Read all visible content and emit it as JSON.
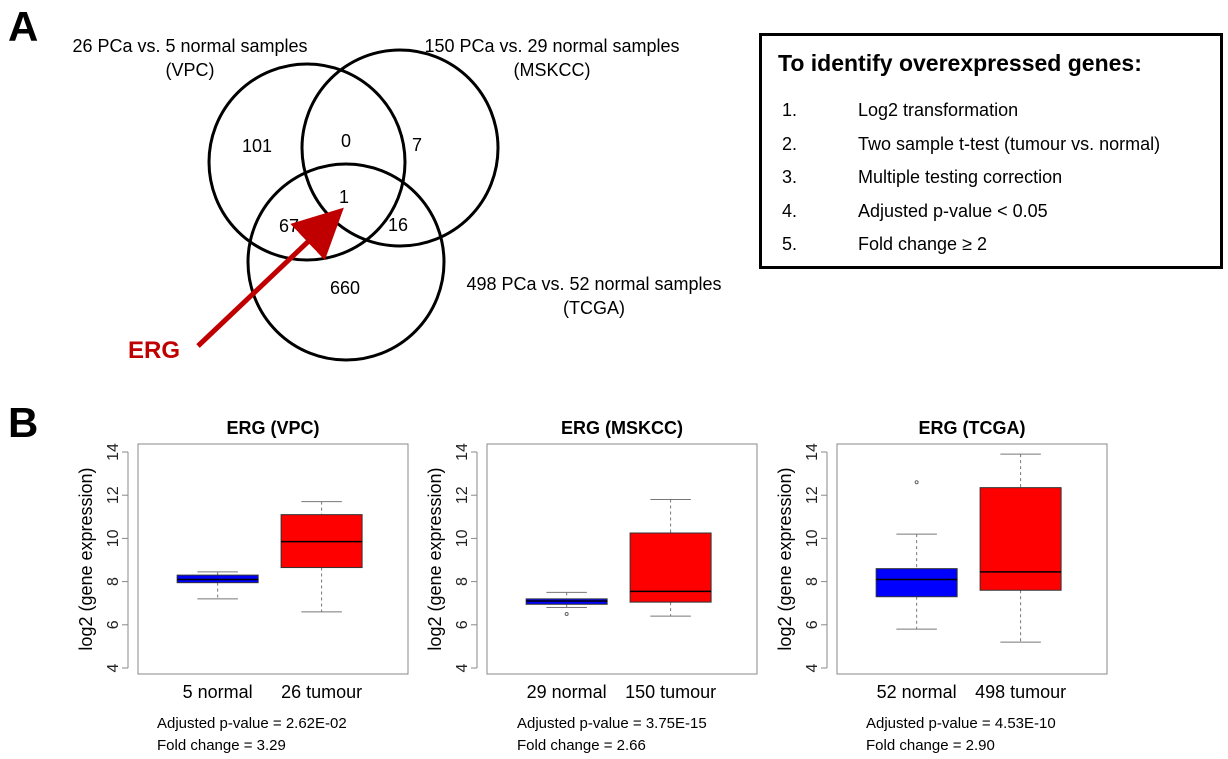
{
  "panel_a": {
    "letter": "A",
    "venn": {
      "sets": [
        {
          "name_line1": "26 PCa vs. 5 normal samples",
          "name_line2": "(VPC)"
        },
        {
          "name_line1": "150 PCa vs. 29 normal samples",
          "name_line2": "(MSKCC)"
        },
        {
          "name_line1": "498 PCa vs. 52 normal samples",
          "name_line2": "(TCGA)"
        }
      ],
      "regions": {
        "vpc_only": "101",
        "mskcc_only": "7",
        "tcga_only": "660",
        "vpc_mskcc": "0",
        "vpc_tcga": "67",
        "mskcc_tcga": "16",
        "all_three": "1"
      },
      "arrow_label": "ERG",
      "arrow_color": "#c00000"
    },
    "criteria": {
      "title": "To identify overexpressed genes:",
      "items": [
        {
          "num": "1.",
          "text": "Log2 transformation"
        },
        {
          "num": "2.",
          "text": "Two sample t-test (tumour vs. normal)"
        },
        {
          "num": "3.",
          "text": "Multiple testing correction"
        },
        {
          "num": "4.",
          "text": "Adjusted p-value < 0.05"
        },
        {
          "num": "5.",
          "text": "Fold change ≥ 2"
        }
      ]
    }
  },
  "panel_b": {
    "letter": "B",
    "plots": [
      {
        "title": "ERG (VPC)",
        "stat1": "Adjusted p-value = 2.62E-02",
        "stat2": "Fold change = 3.29"
      },
      {
        "title": "ERG (MSKCC)",
        "stat1": "Adjusted p-value = 3.75E-15",
        "stat2": "Fold change = 2.66"
      },
      {
        "title": "ERG (TCGA)",
        "stat1": "Adjusted p-value = 4.53E-10",
        "stat2": "Fold change = 2.90"
      }
    ]
  },
  "chart_data": [
    {
      "type": "boxplot",
      "title": "ERG (VPC)",
      "ylabel": "log2 (gene expression)",
      "ylim": [
        4,
        14
      ],
      "yticks": [
        "4",
        "6",
        "8",
        "10",
        "12",
        "14"
      ],
      "series": [
        {
          "name": "5 normal",
          "color": "#0000ff",
          "whisker_low": 7.2,
          "q1": 7.95,
          "median": 8.1,
          "q3": 8.3,
          "whisker_high": 8.45,
          "outliers": []
        },
        {
          "name": "26 tumour",
          "color": "#ff0000",
          "whisker_low": 6.6,
          "q1": 8.65,
          "median": 9.85,
          "q3": 11.1,
          "whisker_high": 11.7,
          "outliers": []
        }
      ]
    },
    {
      "type": "boxplot",
      "title": "ERG (MSKCC)",
      "ylabel": "log2 (gene expression)",
      "ylim": [
        4,
        14
      ],
      "yticks": [
        "4",
        "6",
        "8",
        "10",
        "12",
        "14"
      ],
      "series": [
        {
          "name": "29 normal",
          "color": "#0000ff",
          "whisker_low": 6.8,
          "q1": 6.95,
          "median": 7.1,
          "q3": 7.2,
          "whisker_high": 7.5,
          "outliers": [
            6.5
          ]
        },
        {
          "name": "150 tumour",
          "color": "#ff0000",
          "whisker_low": 6.4,
          "q1": 7.05,
          "median": 7.55,
          "q3": 10.25,
          "whisker_high": 11.8,
          "outliers": []
        }
      ]
    },
    {
      "type": "boxplot",
      "title": "ERG (TCGA)",
      "ylabel": "log2 (gene expression)",
      "ylim": [
        4,
        14
      ],
      "yticks": [
        "4",
        "6",
        "8",
        "10",
        "12",
        "14"
      ],
      "series": [
        {
          "name": "52 normal",
          "color": "#0000ff",
          "whisker_low": 5.8,
          "q1": 7.3,
          "median": 8.1,
          "q3": 8.6,
          "whisker_high": 10.2,
          "outliers": [
            12.6
          ]
        },
        {
          "name": "498 tumour",
          "color": "#ff0000",
          "whisker_low": 5.2,
          "q1": 7.6,
          "median": 8.45,
          "q3": 12.35,
          "whisker_high": 13.9,
          "outliers": []
        }
      ]
    }
  ]
}
